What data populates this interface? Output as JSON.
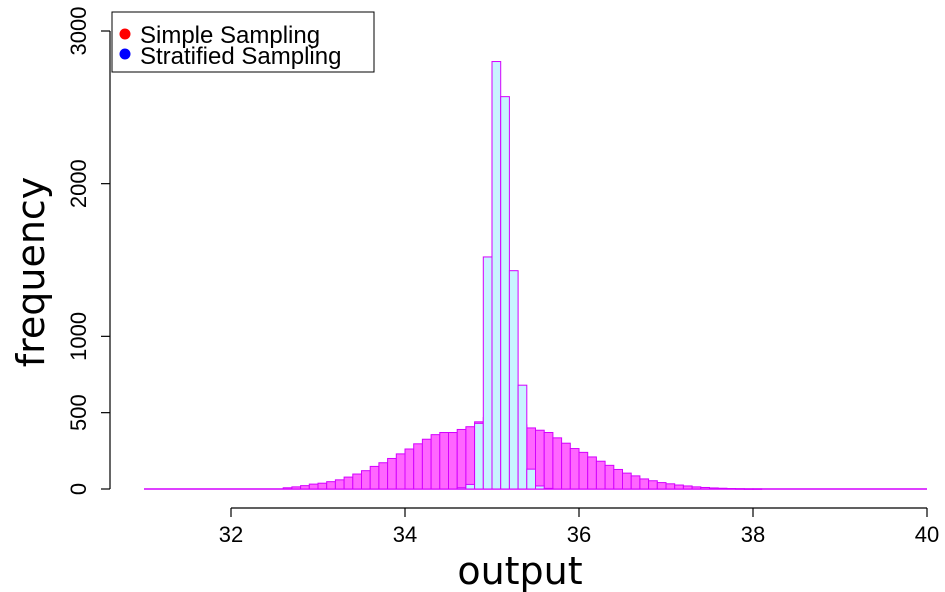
{
  "chart_data": {
    "type": "bar",
    "title": "",
    "xlabel": "output",
    "ylabel": "frequency",
    "xlim": [
      31,
      40
    ],
    "ylim": [
      0,
      3000
    ],
    "x_ticks": [
      32,
      34,
      36,
      38,
      40
    ],
    "y_ticks": [
      0,
      500,
      1000,
      2000,
      3000
    ],
    "bin_width": 0.1,
    "grid": false,
    "legend": {
      "position": "top-left",
      "entries": [
        {
          "label": "Simple Sampling",
          "color": "#ff0000"
        },
        {
          "label": "Stratified Sampling",
          "color": "#0000ff"
        }
      ]
    },
    "series": [
      {
        "name": "Simple Sampling",
        "fill": "#ff66ff",
        "stroke": "#d400ff",
        "bin_start": 32.6,
        "values": [
          8,
          14,
          22,
          32,
          38,
          48,
          60,
          78,
          98,
          120,
          148,
          172,
          200,
          230,
          262,
          296,
          326,
          356,
          370,
          370,
          390,
          408,
          440,
          468,
          486,
          470,
          450,
          420,
          400,
          385,
          370,
          335,
          300,
          265,
          240,
          210,
          182,
          155,
          128,
          104,
          86,
          66,
          54,
          42,
          34,
          26,
          20,
          14,
          10,
          7,
          5,
          3,
          2,
          1,
          1
        ]
      },
      {
        "name": "Stratified Sampling",
        "fill": "#c8f4ff",
        "stroke": "#d400ff",
        "bin_start": 34.6,
        "values": [
          8,
          30,
          430,
          1520,
          2800,
          2570,
          1430,
          680,
          130,
          20,
          4
        ]
      }
    ]
  }
}
